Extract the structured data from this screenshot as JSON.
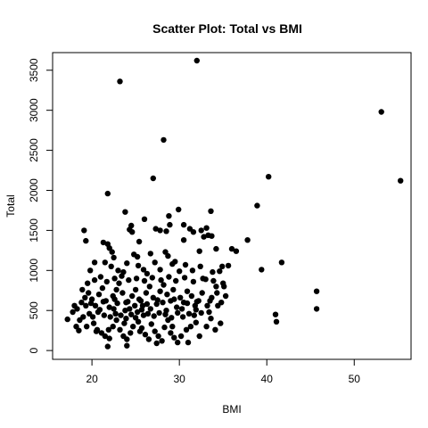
{
  "chart_data": {
    "type": "scatter",
    "title": "Scatter Plot: Total vs BMI",
    "xlabel": "BMI",
    "ylabel": "Total",
    "xlim": [
      15.5,
      56.5
    ],
    "ylim": [
      -110,
      3720
    ],
    "xticks": [
      20,
      30,
      40,
      50
    ],
    "yticks": [
      0,
      500,
      1000,
      1500,
      2000,
      2500,
      3000,
      3500
    ],
    "grid": false,
    "legend": "none",
    "marker_color": "#000000",
    "points": [
      [
        32.0,
        3620
      ],
      [
        23.2,
        3360
      ],
      [
        53.1,
        2980
      ],
      [
        28.2,
        2630
      ],
      [
        40.2,
        2170
      ],
      [
        27.0,
        2150
      ],
      [
        55.3,
        2120
      ],
      [
        21.8,
        1960
      ],
      [
        38.9,
        1810
      ],
      [
        23.8,
        1730
      ],
      [
        33.6,
        1740
      ],
      [
        29.9,
        1760
      ],
      [
        37.8,
        1380
      ],
      [
        34.2,
        1270
      ],
      [
        36.5,
        1240
      ],
      [
        41.7,
        1100
      ],
      [
        39.4,
        1010
      ],
      [
        45.7,
        740
      ],
      [
        45.7,
        520
      ],
      [
        41.0,
        450
      ],
      [
        41.1,
        360
      ],
      [
        22.6,
        640
      ],
      [
        33.1,
        1530
      ],
      [
        36.0,
        1270
      ],
      [
        35.6,
        1060
      ],
      [
        32.3,
        1240
      ],
      [
        34.6,
        990
      ],
      [
        35.0,
        840
      ],
      [
        32.5,
        1500
      ],
      [
        31.6,
        1480
      ],
      [
        30.5,
        1380
      ],
      [
        19.1,
        1500
      ],
      [
        19.3,
        1370
      ],
      [
        21.3,
        1350
      ],
      [
        21.8,
        1330
      ],
      [
        22.0,
        1280
      ],
      [
        22.3,
        1230
      ],
      [
        22.5,
        1160
      ],
      [
        24.3,
        1510
      ],
      [
        24.6,
        1480
      ],
      [
        24.5,
        1560
      ],
      [
        26.0,
        1640
      ],
      [
        25.4,
        1360
      ],
      [
        25.2,
        1170
      ],
      [
        27.3,
        1520
      ],
      [
        27.8,
        1500
      ],
      [
        28.5,
        1490
      ],
      [
        28.9,
        1570
      ],
      [
        28.8,
        1680
      ],
      [
        30.5,
        1570
      ],
      [
        31.2,
        1520
      ],
      [
        32.8,
        1420
      ],
      [
        33.3,
        1440
      ],
      [
        33.7,
        1430
      ],
      [
        34.9,
        1050
      ],
      [
        19.8,
        1000
      ],
      [
        20.3,
        1100
      ],
      [
        21.5,
        1100
      ],
      [
        22.2,
        1050
      ],
      [
        23.0,
        1000
      ],
      [
        23.6,
        980
      ],
      [
        24.0,
        1090
      ],
      [
        24.8,
        1200
      ],
      [
        25.3,
        1060
      ],
      [
        25.9,
        1010
      ],
      [
        26.3,
        960
      ],
      [
        26.7,
        1210
      ],
      [
        27.2,
        1100
      ],
      [
        27.8,
        1010
      ],
      [
        28.4,
        1230
      ],
      [
        28.7,
        1180
      ],
      [
        29.2,
        1080
      ],
      [
        29.5,
        1110
      ],
      [
        30.0,
        990
      ],
      [
        30.7,
        1070
      ],
      [
        31.5,
        1000
      ],
      [
        32.4,
        1050
      ],
      [
        33.0,
        890
      ],
      [
        33.8,
        980
      ],
      [
        34.2,
        800
      ],
      [
        35.1,
        800
      ],
      [
        18.2,
        300
      ],
      [
        18.5,
        250
      ],
      [
        19.0,
        420
      ],
      [
        19.3,
        560
      ],
      [
        19.7,
        460
      ],
      [
        20.2,
        340
      ],
      [
        20.6,
        260
      ],
      [
        21.1,
        220
      ],
      [
        21.5,
        180
      ],
      [
        22.0,
        150
      ],
      [
        22.4,
        300
      ],
      [
        22.8,
        380
      ],
      [
        23.2,
        260
      ],
      [
        23.6,
        180
      ],
      [
        24.0,
        140
      ],
      [
        24.4,
        220
      ],
      [
        24.7,
        300
      ],
      [
        25.0,
        410
      ],
      [
        25.3,
        360
      ],
      [
        25.7,
        280
      ],
      [
        26.1,
        200
      ],
      [
        26.5,
        140
      ],
      [
        26.8,
        330
      ],
      [
        27.2,
        240
      ],
      [
        27.6,
        180
      ],
      [
        28.0,
        120
      ],
      [
        28.3,
        290
      ],
      [
        28.7,
        380
      ],
      [
        29.0,
        220
      ],
      [
        29.4,
        160
      ],
      [
        29.8,
        100
      ],
      [
        30.2,
        180
      ],
      [
        30.8,
        260
      ],
      [
        31.3,
        300
      ],
      [
        31.9,
        350
      ],
      [
        32.3,
        180
      ],
      [
        33.1,
        300
      ],
      [
        33.6,
        400
      ],
      [
        34.1,
        260
      ],
      [
        34.7,
        340
      ],
      [
        18.3,
        520
      ],
      [
        18.8,
        600
      ],
      [
        19.2,
        660
      ],
      [
        19.6,
        720
      ],
      [
        20.0,
        640
      ],
      [
        20.4,
        560
      ],
      [
        20.8,
        700
      ],
      [
        21.2,
        780
      ],
      [
        21.6,
        620
      ],
      [
        22.0,
        540
      ],
      [
        22.4,
        680
      ],
      [
        22.8,
        760
      ],
      [
        23.1,
        840
      ],
      [
        23.5,
        720
      ],
      [
        23.9,
        600
      ],
      [
        24.3,
        520
      ],
      [
        24.6,
        680
      ],
      [
        25.0,
        760
      ],
      [
        25.4,
        640
      ],
      [
        25.8,
        560
      ],
      [
        26.2,
        720
      ],
      [
        26.6,
        800
      ],
      [
        27.0,
        660
      ],
      [
        27.4,
        580
      ],
      [
        27.8,
        740
      ],
      [
        28.2,
        820
      ],
      [
        28.6,
        700
      ],
      [
        29.0,
        620
      ],
      [
        29.3,
        760
      ],
      [
        29.7,
        540
      ],
      [
        30.1,
        660
      ],
      [
        30.5,
        600
      ],
      [
        30.9,
        740
      ],
      [
        31.4,
        680
      ],
      [
        31.8,
        560
      ],
      [
        32.2,
        620
      ],
      [
        32.6,
        720
      ],
      [
        33.2,
        560
      ],
      [
        33.7,
        660
      ],
      [
        34.3,
        720
      ],
      [
        34.8,
        600
      ],
      [
        35.3,
        680
      ],
      [
        17.2,
        390
      ],
      [
        17.8,
        480
      ],
      [
        18.6,
        380
      ],
      [
        19.4,
        300
      ],
      [
        20.1,
        420
      ],
      [
        20.7,
        480
      ],
      [
        21.4,
        440
      ],
      [
        22.1,
        420
      ],
      [
        22.7,
        460
      ],
      [
        23.3,
        440
      ],
      [
        23.9,
        400
      ],
      [
        24.5,
        450
      ],
      [
        25.2,
        480
      ],
      [
        25.9,
        440
      ],
      [
        26.4,
        460
      ],
      [
        27.1,
        430
      ],
      [
        27.7,
        470
      ],
      [
        28.4,
        450
      ],
      [
        29.1,
        410
      ],
      [
        29.8,
        470
      ],
      [
        30.4,
        420
      ],
      [
        31.1,
        460
      ],
      [
        31.7,
        440
      ],
      [
        32.5,
        470
      ],
      [
        33.4,
        480
      ],
      [
        18.0,
        560
      ],
      [
        18.9,
        760
      ],
      [
        19.5,
        840
      ],
      [
        20.3,
        880
      ],
      [
        21.0,
        920
      ],
      [
        21.7,
        860
      ],
      [
        22.6,
        900
      ],
      [
        23.4,
        930
      ],
      [
        24.2,
        880
      ],
      [
        25.1,
        900
      ],
      [
        26.0,
        870
      ],
      [
        26.9,
        910
      ],
      [
        27.9,
        880
      ],
      [
        28.8,
        920
      ],
      [
        29.6,
        870
      ],
      [
        30.6,
        910
      ],
      [
        31.6,
        860
      ],
      [
        32.7,
        900
      ],
      [
        33.9,
        870
      ],
      [
        34.4,
        560
      ],
      [
        20.5,
        240
      ],
      [
        21.9,
        260
      ],
      [
        23.7,
        340
      ],
      [
        25.5,
        240
      ],
      [
        27.4,
        90
      ],
      [
        29.2,
        300
      ],
      [
        31.0,
        100
      ],
      [
        24.9,
        560
      ],
      [
        26.3,
        580
      ],
      [
        28.1,
        600
      ],
      [
        19.9,
        590
      ],
      [
        21.3,
        610
      ],
      [
        22.9,
        590
      ],
      [
        24.1,
        610
      ],
      [
        25.6,
        620
      ],
      [
        27.5,
        630
      ],
      [
        29.4,
        640
      ],
      [
        30.9,
        590
      ],
      [
        32.0,
        610
      ],
      [
        33.5,
        620
      ],
      [
        20.9,
        510
      ],
      [
        22.5,
        520
      ],
      [
        23.8,
        500
      ],
      [
        25.7,
        510
      ],
      [
        26.7,
        520
      ],
      [
        28.5,
        500
      ],
      [
        30.3,
        520
      ],
      [
        31.9,
        510
      ],
      [
        21.8,
        50
      ],
      [
        24.0,
        60
      ]
    ]
  }
}
